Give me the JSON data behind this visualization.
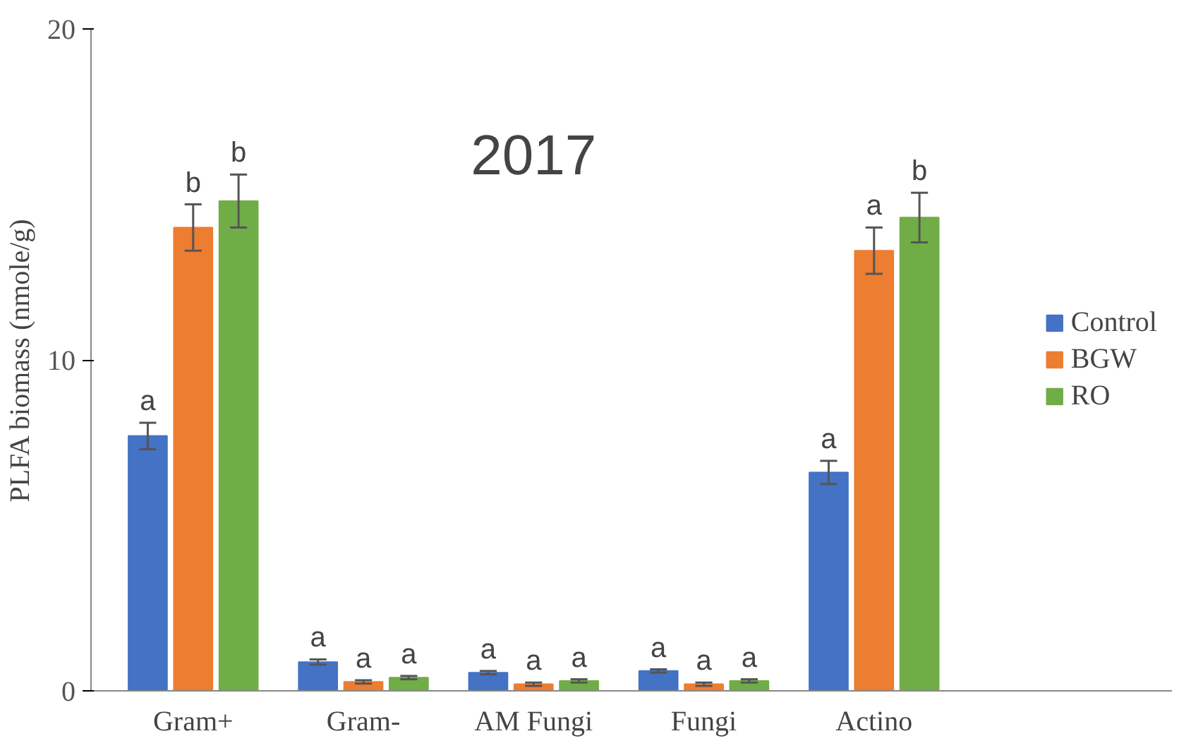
{
  "chart_data": {
    "type": "bar",
    "title": "2017",
    "ylabel": "PLFA biomass (nmole/g)",
    "categories": [
      "Gram+",
      "Gram-",
      "AM Fungi",
      "Fungi",
      "Actino"
    ],
    "series": [
      {
        "name": "Control",
        "color": "#4472c4",
        "values": [
          7.7,
          0.87,
          0.55,
          0.6,
          6.6
        ],
        "errors": [
          0.4,
          0.08,
          0.05,
          0.05,
          0.35
        ],
        "value_labels": [
          "a",
          "a",
          "a",
          "a",
          "a"
        ]
      },
      {
        "name": "BGW",
        "color": "#ed7d31",
        "values": [
          14.0,
          0.27,
          0.2,
          0.2,
          13.3
        ],
        "errors": [
          0.7,
          0.05,
          0.05,
          0.05,
          0.7
        ],
        "value_labels": [
          "b",
          "a",
          "a",
          "a",
          "a"
        ]
      },
      {
        "name": "RO",
        "color": "#70ad47",
        "values": [
          14.8,
          0.4,
          0.3,
          0.3,
          14.3
        ],
        "errors": [
          0.8,
          0.05,
          0.05,
          0.05,
          0.75
        ],
        "value_labels": [
          "b",
          "a",
          "a",
          "a",
          "b"
        ]
      }
    ],
    "ylim": [
      0,
      20
    ],
    "yticks": [
      0,
      10,
      20
    ],
    "grid": false,
    "legend": "right"
  }
}
